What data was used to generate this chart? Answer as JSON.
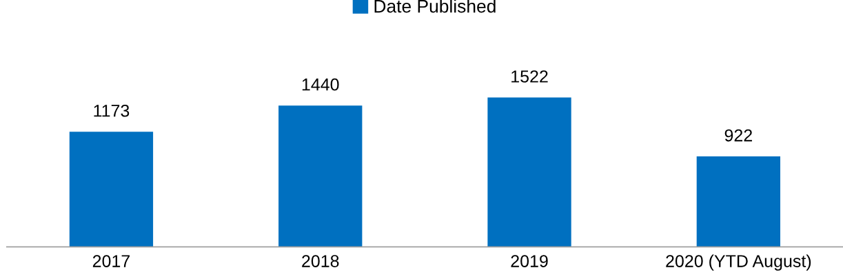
{
  "chart_data": {
    "type": "bar",
    "categories": [
      "2017",
      "2018",
      "2019",
      "2020 (YTD August)"
    ],
    "series": [
      {
        "name": "Date Published",
        "color": "#0070c0",
        "values": [
          1173,
          1440,
          1522,
          922
        ]
      }
    ],
    "data_labels": true,
    "legend": "top",
    "grid": false,
    "tick_labels": "x"
  }
}
